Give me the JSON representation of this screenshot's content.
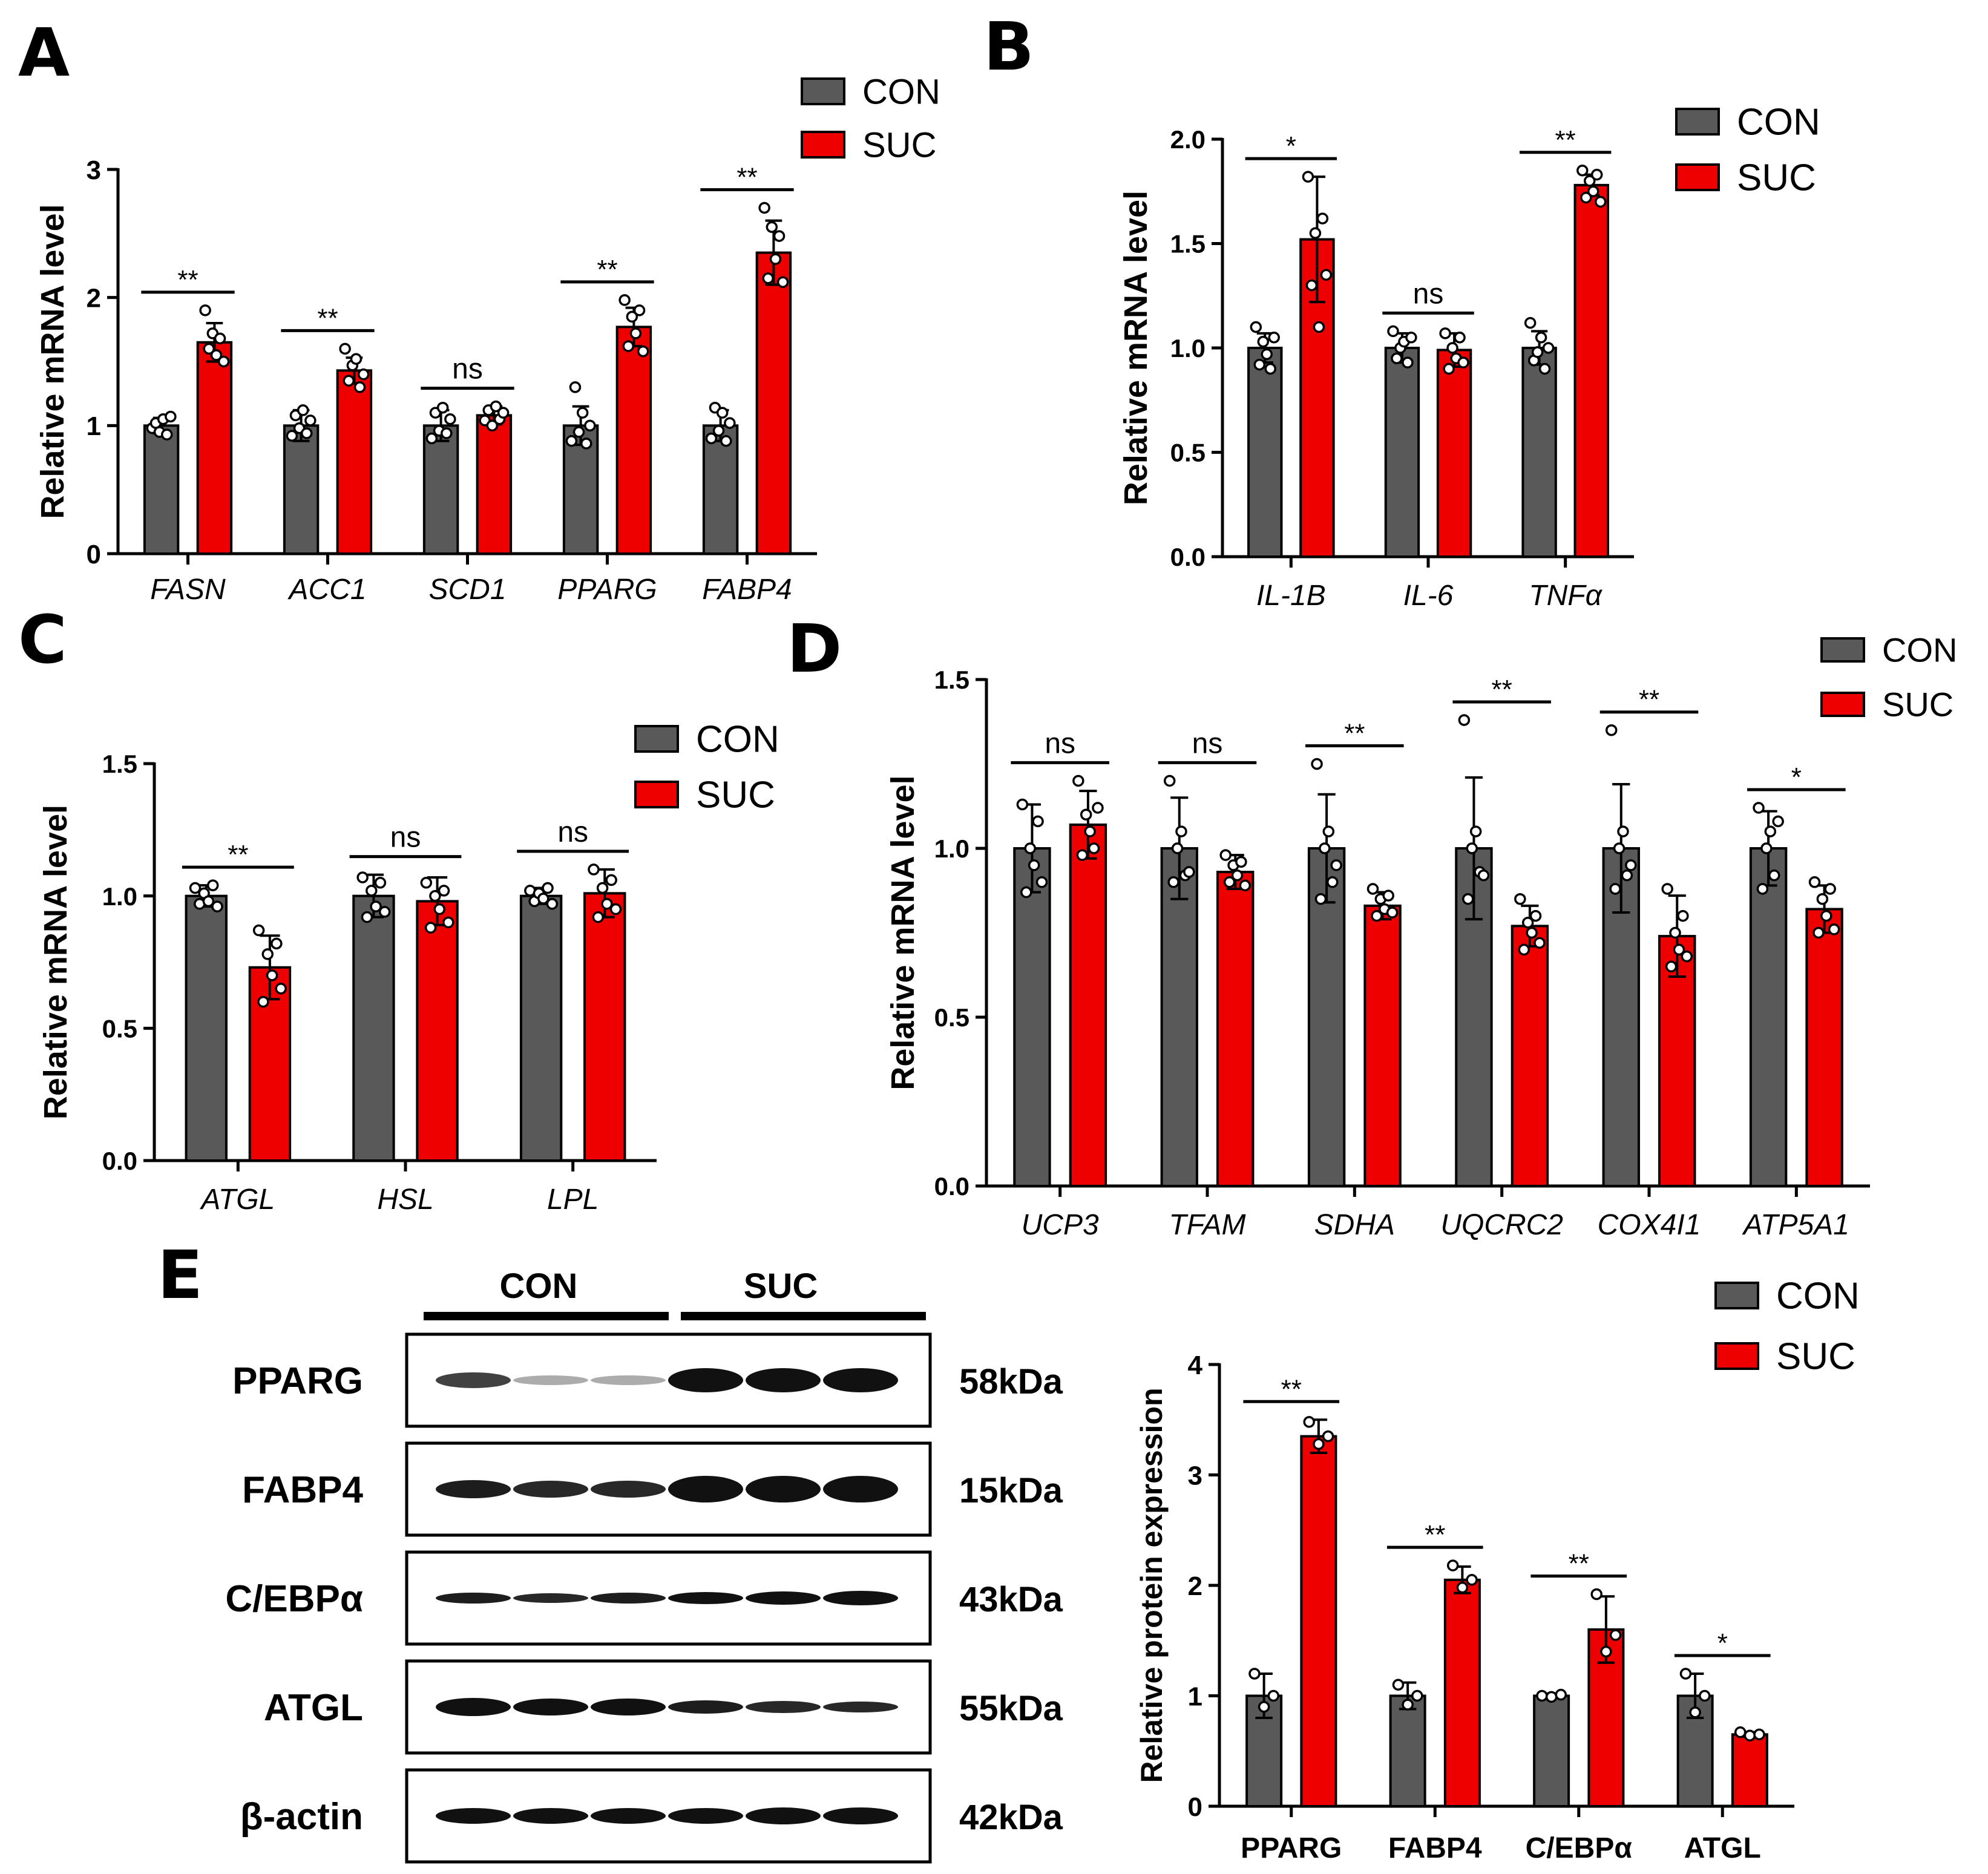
{
  "panel_labels": {
    "A": "A",
    "B": "B",
    "C": "C",
    "D": "D",
    "E": "E"
  },
  "colors": {
    "con": "#595959",
    "suc": "#ee0000",
    "axis": "#000000"
  },
  "legend": {
    "con": "CON",
    "suc": "SUC"
  },
  "chart_data": [
    {
      "panel": "A",
      "type": "bar",
      "ylabel": "Relative mRNA level",
      "ylim": [
        0,
        3
      ],
      "yticks": [
        "0",
        "1",
        "2",
        "3"
      ],
      "categories": [
        "FASN",
        "ACC1",
        "SCD1",
        "PPARG",
        "FABP4"
      ],
      "italic_categories": true,
      "series": [
        {
          "name": "CON",
          "values": [
            1.0,
            1.0,
            1.0,
            1.0,
            1.0
          ],
          "errors": [
            0.06,
            0.12,
            0.12,
            0.15,
            0.12
          ]
        },
        {
          "name": "SUC",
          "values": [
            1.65,
            1.43,
            1.08,
            1.77,
            2.35
          ],
          "errors": [
            0.15,
            0.1,
            0.07,
            0.15,
            0.25
          ]
        }
      ],
      "points": {
        "CON": [
          [
            0.98,
            1.02,
            0.95,
            1.05,
            0.93,
            1.07
          ],
          [
            0.92,
            1.08,
            0.98,
            1.12,
            0.94,
            1.04
          ],
          [
            0.9,
            1.1,
            0.96,
            1.14,
            0.94,
            1.05
          ],
          [
            0.88,
            1.3,
            0.95,
            1.1,
            0.86,
            1.0
          ],
          [
            0.9,
            1.14,
            0.96,
            1.1,
            0.88,
            1.02
          ]
        ],
        "SUC": [
          [
            1.9,
            1.6,
            1.72,
            1.55,
            1.68,
            1.5
          ],
          [
            1.6,
            1.35,
            1.47,
            1.52,
            1.3,
            1.4
          ],
          [
            1.04,
            1.12,
            1.0,
            1.15,
            1.05,
            1.1
          ],
          [
            1.98,
            1.62,
            1.85,
            1.72,
            1.9,
            1.58
          ],
          [
            2.7,
            2.15,
            2.55,
            2.3,
            2.48,
            2.12
          ]
        ]
      },
      "significance": [
        "**",
        "**",
        "ns",
        "**",
        "**"
      ]
    },
    {
      "panel": "B",
      "type": "bar",
      "ylabel": "Relative mRNA level",
      "ylim": [
        0,
        2
      ],
      "yticks": [
        "0.0",
        "0.5",
        "1.0",
        "1.5",
        "2.0"
      ],
      "categories": [
        "IL-1B",
        "IL-6",
        "TNFα"
      ],
      "italic_categories": true,
      "series": [
        {
          "name": "CON",
          "values": [
            1.0,
            1.0,
            1.0
          ],
          "errors": [
            0.07,
            0.07,
            0.08
          ]
        },
        {
          "name": "SUC",
          "values": [
            1.52,
            0.99,
            1.78
          ],
          "errors": [
            0.3,
            0.08,
            0.05
          ]
        }
      ],
      "points": {
        "CON": [
          [
            1.1,
            0.92,
            1.03,
            0.97,
            0.9,
            1.05
          ],
          [
            1.08,
            0.95,
            1.0,
            1.03,
            0.93,
            1.05
          ],
          [
            1.12,
            0.94,
            0.98,
            1.05,
            0.9,
            1.0
          ]
        ],
        "SUC": [
          [
            1.82,
            1.3,
            1.55,
            1.1,
            1.62,
            1.35
          ],
          [
            1.07,
            0.9,
            1.0,
            0.95,
            1.05,
            0.93
          ],
          [
            1.85,
            1.72,
            1.8,
            1.75,
            1.83,
            1.7
          ]
        ]
      },
      "significance": [
        "*",
        "ns",
        "**"
      ]
    },
    {
      "panel": "C",
      "type": "bar",
      "ylabel": "Relative mRNA level",
      "ylim": [
        0,
        1.5
      ],
      "yticks": [
        "0.0",
        "0.5",
        "1.0",
        "1.5"
      ],
      "categories": [
        "ATGL",
        "HSL",
        "LPL"
      ],
      "italic_categories": true,
      "series": [
        {
          "name": "CON",
          "values": [
            1.0,
            1.0,
            1.0
          ],
          "errors": [
            0.04,
            0.08,
            0.03
          ]
        },
        {
          "name": "SUC",
          "values": [
            0.73,
            0.98,
            1.01
          ],
          "errors": [
            0.12,
            0.09,
            0.09
          ]
        }
      ],
      "points": {
        "CON": [
          [
            1.03,
            0.97,
            1.01,
            0.98,
            1.04,
            0.96
          ],
          [
            1.07,
            0.92,
            1.02,
            0.96,
            1.05,
            0.94
          ],
          [
            1.02,
            0.98,
            1.01,
            0.99,
            1.03,
            0.97
          ]
        ],
        "SUC": [
          [
            0.87,
            0.6,
            0.78,
            0.7,
            0.82,
            0.65
          ],
          [
            1.05,
            0.88,
            1.0,
            0.95,
            1.02,
            0.9
          ],
          [
            1.1,
            0.92,
            1.03,
            0.97,
            1.06,
            0.95
          ]
        ]
      },
      "significance": [
        "**",
        "ns",
        "ns"
      ]
    },
    {
      "panel": "D",
      "type": "bar",
      "ylabel": "Relative mRNA level",
      "ylim": [
        0,
        1.5
      ],
      "yticks": [
        "0.0",
        "0.5",
        "1.0",
        "1.5"
      ],
      "categories": [
        "UCP3",
        "TFAM",
        "SDHA",
        "UQCRC2",
        "COX4I1",
        "ATP5A1"
      ],
      "italic_categories": true,
      "series": [
        {
          "name": "CON",
          "values": [
            1.0,
            1.0,
            1.0,
            1.0,
            1.0,
            1.0
          ],
          "errors": [
            0.13,
            0.15,
            0.16,
            0.21,
            0.19,
            0.11
          ]
        },
        {
          "name": "SUC",
          "values": [
            1.07,
            0.93,
            0.83,
            0.77,
            0.74,
            0.82
          ],
          "errors": [
            0.1,
            0.05,
            0.04,
            0.06,
            0.12,
            0.07
          ]
        }
      ],
      "points": {
        "CON": [
          [
            1.13,
            0.87,
            1.0,
            0.95,
            1.08,
            0.9
          ],
          [
            1.2,
            0.9,
            1.0,
            1.05,
            0.92,
            0.93
          ],
          [
            1.25,
            0.85,
            1.0,
            1.05,
            0.9,
            0.95
          ],
          [
            1.38,
            0.85,
            1.0,
            1.05,
            0.93,
            0.92
          ],
          [
            1.35,
            0.88,
            1.0,
            1.05,
            0.92,
            0.95
          ],
          [
            1.12,
            0.88,
            1.0,
            1.05,
            0.92,
            1.08
          ]
        ],
        "SUC": [
          [
            1.2,
            0.98,
            1.1,
            1.05,
            1.0,
            1.12
          ],
          [
            0.98,
            0.9,
            0.95,
            0.92,
            0.96,
            0.89
          ],
          [
            0.88,
            0.8,
            0.85,
            0.82,
            0.86,
            0.81
          ],
          [
            0.85,
            0.7,
            0.78,
            0.75,
            0.8,
            0.72
          ],
          [
            0.88,
            0.65,
            0.75,
            0.7,
            0.8,
            0.68
          ],
          [
            0.9,
            0.75,
            0.85,
            0.8,
            0.88,
            0.76
          ]
        ]
      },
      "significance": [
        "ns",
        "ns",
        "**",
        "**",
        "**",
        "*"
      ]
    },
    {
      "panel": "E",
      "type": "bar",
      "ylabel": "Relative protein expression",
      "ylim": [
        0,
        4
      ],
      "yticks": [
        "0",
        "1",
        "2",
        "3",
        "4"
      ],
      "categories": [
        "PPARG",
        "FABP4",
        "C/EBPα",
        "ATGL"
      ],
      "italic_categories": false,
      "series": [
        {
          "name": "CON",
          "values": [
            1.0,
            1.0,
            1.0,
            1.0
          ],
          "errors": [
            0.2,
            0.12,
            0.02,
            0.2
          ]
        },
        {
          "name": "SUC",
          "values": [
            3.35,
            2.05,
            1.6,
            0.65
          ],
          "errors": [
            0.15,
            0.12,
            0.3,
            0.02
          ]
        }
      ],
      "points": {
        "CON": [
          [
            1.2,
            0.9,
            1.0
          ],
          [
            1.1,
            0.92,
            1.0
          ],
          [
            1.0,
            0.99,
            1.01
          ],
          [
            1.2,
            0.85,
            1.0
          ]
        ],
        "SUC": [
          [
            3.48,
            3.28,
            3.35
          ],
          [
            2.18,
            1.98,
            2.05
          ],
          [
            1.92,
            1.4,
            1.55
          ],
          [
            0.67,
            0.64,
            0.65
          ]
        ]
      },
      "significance": [
        "**",
        "**",
        "**",
        "*"
      ]
    }
  ],
  "western_blot": {
    "group_labels": [
      "CON",
      "SUC"
    ],
    "rows": [
      {
        "protein": "PPARG",
        "size": "58kDa"
      },
      {
        "protein": "FABP4",
        "size": "15kDa"
      },
      {
        "protein": "C/EBPα",
        "size": "43kDa"
      },
      {
        "protein": "ATGL",
        "size": "55kDa"
      },
      {
        "protein": "β-actin",
        "size": "42kDa"
      }
    ]
  }
}
